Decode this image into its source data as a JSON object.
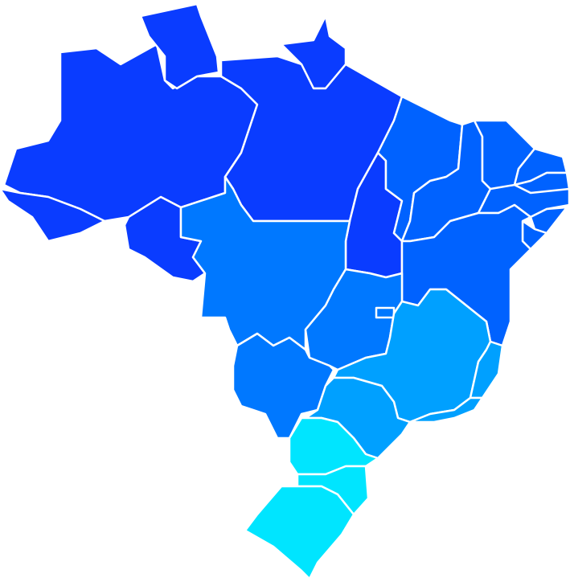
{
  "map": {
    "background": "#ffffff",
    "border_color": "#ffffff",
    "region_colors": {
      "north": "#0a3cff",
      "northeast": "#0062ff",
      "center_west": "#0078ff",
      "southeast": "#00a0ff",
      "south": "#00e5ff"
    }
  }
}
